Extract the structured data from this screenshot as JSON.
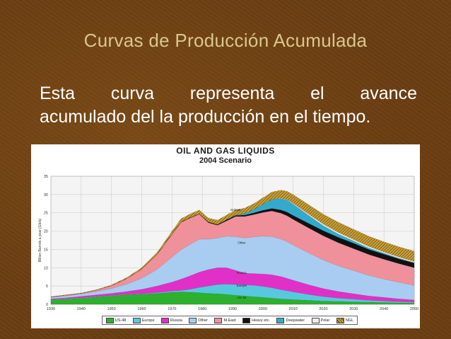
{
  "slide": {
    "title": "Curvas de Producción Acumulada",
    "body_line1": "Esta curva representa el avance",
    "body_line2": "acumulado del la producción en el tiempo."
  },
  "chart_data": {
    "type": "area",
    "title": "OIL AND GAS LIQUIDS",
    "subtitle": "2004 Scenario",
    "ylabel": "Billion Barrels a year (Gb/a)",
    "ylim": [
      0,
      35
    ],
    "xlim": [
      1930,
      2050
    ],
    "yticks": [
      "0",
      "5",
      "10",
      "15",
      "20",
      "25",
      "30",
      "35"
    ],
    "xticks": [
      "1930",
      "1940",
      "1950",
      "1960",
      "1970",
      "1980",
      "1990",
      "2000",
      "2010",
      "2020",
      "2030",
      "2040",
      "2050"
    ],
    "x": [
      1930,
      1935,
      1940,
      1945,
      1950,
      1955,
      1960,
      1965,
      1970,
      1973,
      1976,
      1979,
      1982,
      1985,
      1988,
      1991,
      1994,
      1997,
      2000,
      2003,
      2006,
      2008,
      2010,
      2015,
      2020,
      2025,
      2030,
      2035,
      2040,
      2045,
      2050
    ],
    "series": [
      {
        "name": "US-48",
        "color": "#2db02d",
        "values": [
          1.2,
          1.4,
          1.7,
          2.0,
          2.3,
          2.6,
          2.8,
          3.0,
          3.3,
          3.4,
          3.3,
          3.2,
          3.0,
          2.9,
          2.7,
          2.5,
          2.3,
          2.1,
          1.9,
          1.7,
          1.5,
          1.4,
          1.3,
          1.1,
          0.9,
          0.8,
          0.7,
          0.6,
          0.5,
          0.4,
          0.4
        ]
      },
      {
        "name": "Europe",
        "color": "#56c9df",
        "values": [
          0.1,
          0.1,
          0.1,
          0.1,
          0.1,
          0.1,
          0.1,
          0.2,
          0.3,
          0.4,
          0.8,
          1.4,
          2.0,
          2.5,
          2.8,
          2.9,
          3.0,
          3.1,
          3.0,
          2.8,
          2.5,
          2.3,
          2.1,
          1.6,
          1.2,
          0.9,
          0.7,
          0.5,
          0.4,
          0.3,
          0.2
        ]
      },
      {
        "name": "Russia",
        "color": "#e030c8",
        "values": [
          0.2,
          0.3,
          0.4,
          0.5,
          0.6,
          0.8,
          1.2,
          1.8,
          2.5,
          3.1,
          3.7,
          4.2,
          4.5,
          4.6,
          4.5,
          3.9,
          3.2,
          3.2,
          3.4,
          3.6,
          3.6,
          3.4,
          3.2,
          2.7,
          2.2,
          1.8,
          1.5,
          1.2,
          1.0,
          0.8,
          0.6
        ]
      },
      {
        "name": "Other",
        "color": "#a8cdf0",
        "values": [
          0.4,
          0.5,
          0.6,
          0.9,
          1.3,
          2.0,
          3.0,
          4.5,
          6.8,
          8.0,
          8.6,
          9.0,
          8.3,
          8.1,
          8.6,
          9.2,
          9.6,
          10.0,
          10.3,
          10.4,
          10.2,
          10.0,
          9.6,
          8.7,
          7.8,
          7.0,
          6.3,
          5.6,
          5.0,
          4.5,
          4.0
        ]
      },
      {
        "name": "M.East",
        "color": "#f0909a",
        "values": [
          0.1,
          0.2,
          0.2,
          0.4,
          0.8,
          1.5,
          2.5,
          4.0,
          6.2,
          7.5,
          7.2,
          6.8,
          4.5,
          3.5,
          4.2,
          5.5,
          5.9,
          6.1,
          6.5,
          7.0,
          7.1,
          7.1,
          7.0,
          6.8,
          6.6,
          6.3,
          6.0,
          5.7,
          5.4,
          5.1,
          4.8
        ]
      },
      {
        "name": "Heavy etc.",
        "color": "#111111",
        "values": [
          0,
          0,
          0,
          0,
          0,
          0,
          0,
          0,
          0.1,
          0.1,
          0.1,
          0.1,
          0.2,
          0.2,
          0.3,
          0.3,
          0.4,
          0.5,
          0.6,
          0.7,
          0.9,
          1.0,
          1.1,
          1.3,
          1.4,
          1.5,
          1.5,
          1.4,
          1.4,
          1.3,
          1.3
        ]
      },
      {
        "name": "Deepwater",
        "color": "#33aacc",
        "values": [
          0,
          0,
          0,
          0,
          0,
          0,
          0,
          0,
          0,
          0,
          0,
          0,
          0,
          0,
          0,
          0.1,
          0.4,
          0.9,
          1.6,
          2.5,
          3.1,
          3.3,
          3.1,
          2.2,
          1.4,
          0.9,
          0.6,
          0.4,
          0.3,
          0.2,
          0.1
        ]
      },
      {
        "name": "Polar",
        "color": "#eeeeee",
        "values": [
          0,
          0,
          0,
          0,
          0,
          0,
          0,
          0,
          0,
          0,
          0,
          0,
          0,
          0,
          0,
          0,
          0,
          0,
          0,
          0,
          0.1,
          0.1,
          0.2,
          0.3,
          0.4,
          0.4,
          0.4,
          0.4,
          0.3,
          0.3,
          0.3
        ]
      },
      {
        "name": "NGL",
        "color": "#c9a238",
        "values": [
          0.1,
          0.1,
          0.1,
          0.1,
          0.2,
          0.3,
          0.4,
          0.6,
          0.8,
          0.9,
          1.0,
          1.1,
          1.1,
          1.2,
          1.3,
          1.4,
          1.5,
          1.6,
          1.8,
          2.0,
          2.2,
          2.3,
          2.4,
          2.6,
          2.7,
          2.8,
          2.8,
          2.8,
          2.8,
          2.8,
          2.8
        ]
      }
    ],
    "region_labels": [
      {
        "text": "M.East",
        "x": 1991,
        "y": 25.5
      },
      {
        "text": "Other",
        "x": 1993,
        "y": 16.5
      },
      {
        "text": "Russia",
        "x": 1993,
        "y": 8.3
      },
      {
        "text": "Europe",
        "x": 1993,
        "y": 4.8
      },
      {
        "text": "US-48",
        "x": 1993,
        "y": 1.5
      }
    ],
    "legend": [
      "US-48",
      "Europe",
      "Russia",
      "Other",
      "M.East",
      "Heavy etc.",
      "Deepwater",
      "Polar",
      "NGL"
    ]
  }
}
